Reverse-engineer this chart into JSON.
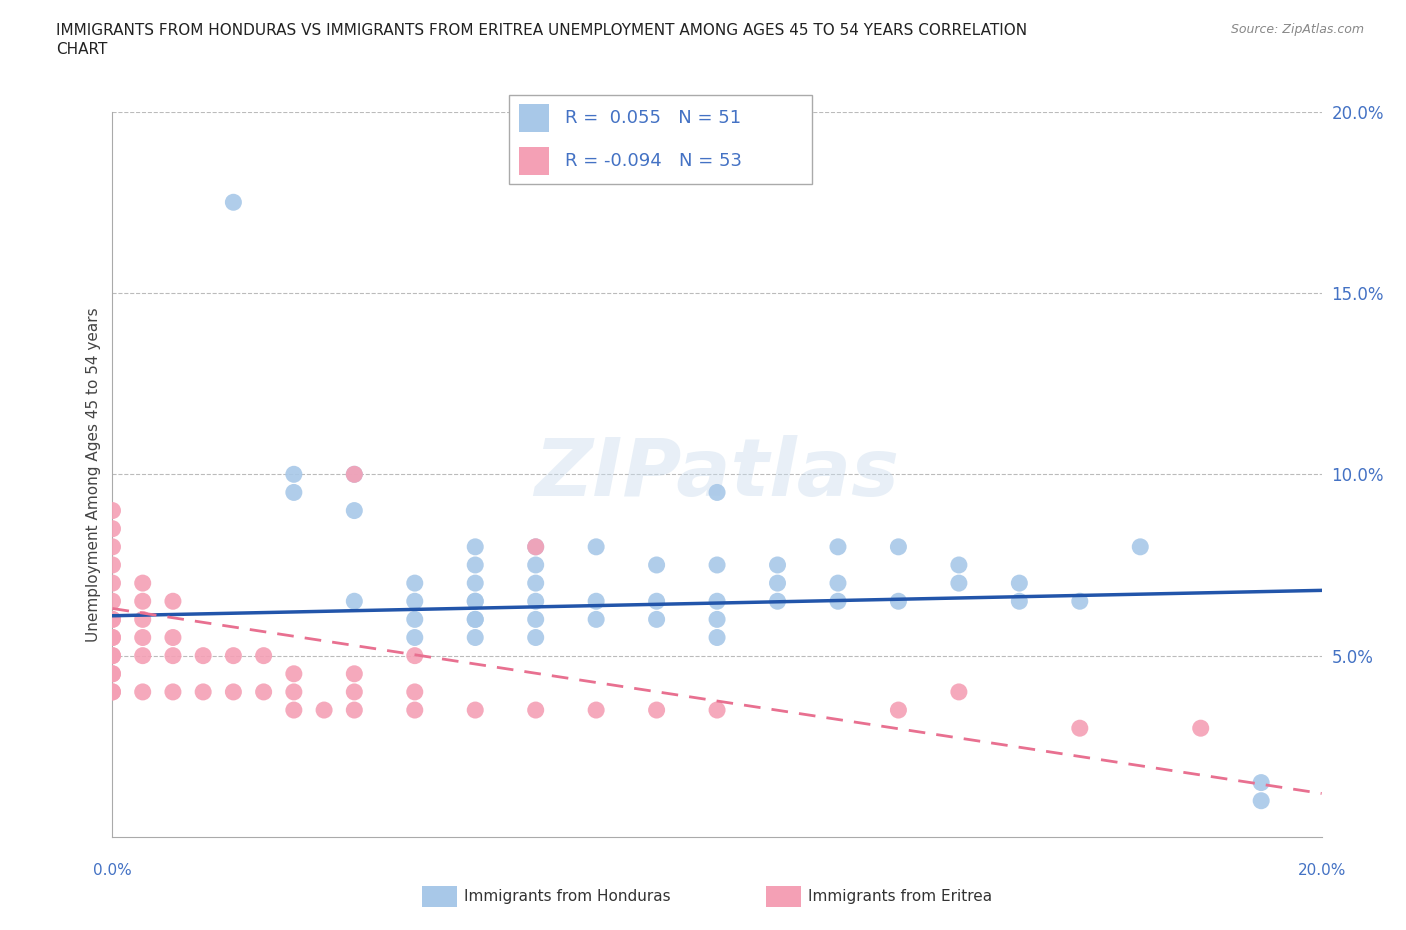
{
  "title_line1": "IMMIGRANTS FROM HONDURAS VS IMMIGRANTS FROM ERITREA UNEMPLOYMENT AMONG AGES 45 TO 54 YEARS CORRELATION",
  "title_line2": "CHART",
  "source": "Source: ZipAtlas.com",
  "xlabel_bottom_left": "0.0%",
  "xlabel_bottom_right": "20.0%",
  "ylabel": "Unemployment Among Ages 45 to 54 years",
  "ytick_labels": [
    "5.0%",
    "10.0%",
    "15.0%",
    "20.0%"
  ],
  "ytick_values": [
    0.05,
    0.1,
    0.15,
    0.2
  ],
  "xlim": [
    0.0,
    0.2
  ],
  "ylim": [
    0.0,
    0.2
  ],
  "watermark": "ZIPatlas",
  "honduras_color": "#a8c8e8",
  "eritrea_color": "#f4a0b5",
  "honduras_line_color": "#2255aa",
  "eritrea_line_color": "#e87090",
  "text_color": "#4472c4",
  "background_color": "#ffffff",
  "grid_color": "#bbbbbb",
  "honduras_scatter_x": [
    0.02,
    0.03,
    0.03,
    0.04,
    0.04,
    0.04,
    0.05,
    0.05,
    0.05,
    0.05,
    0.06,
    0.06,
    0.06,
    0.06,
    0.06,
    0.06,
    0.06,
    0.06,
    0.07,
    0.07,
    0.07,
    0.07,
    0.07,
    0.07,
    0.08,
    0.08,
    0.08,
    0.09,
    0.09,
    0.09,
    0.1,
    0.1,
    0.1,
    0.1,
    0.1,
    0.11,
    0.11,
    0.11,
    0.12,
    0.12,
    0.12,
    0.13,
    0.13,
    0.14,
    0.14,
    0.15,
    0.15,
    0.16,
    0.17,
    0.19,
    0.19
  ],
  "honduras_scatter_y": [
    0.175,
    0.095,
    0.1,
    0.065,
    0.09,
    0.1,
    0.055,
    0.06,
    0.065,
    0.07,
    0.055,
    0.06,
    0.06,
    0.065,
    0.065,
    0.07,
    0.075,
    0.08,
    0.055,
    0.06,
    0.065,
    0.07,
    0.075,
    0.08,
    0.06,
    0.065,
    0.08,
    0.06,
    0.065,
    0.075,
    0.055,
    0.06,
    0.065,
    0.075,
    0.095,
    0.065,
    0.07,
    0.075,
    0.065,
    0.07,
    0.08,
    0.065,
    0.08,
    0.07,
    0.075,
    0.065,
    0.07,
    0.065,
    0.08,
    0.01,
    0.015
  ],
  "eritrea_scatter_x": [
    0.0,
    0.0,
    0.0,
    0.0,
    0.0,
    0.0,
    0.0,
    0.0,
    0.0,
    0.0,
    0.0,
    0.0,
    0.0,
    0.0,
    0.0,
    0.0,
    0.005,
    0.005,
    0.005,
    0.005,
    0.005,
    0.005,
    0.01,
    0.01,
    0.01,
    0.01,
    0.015,
    0.015,
    0.02,
    0.02,
    0.025,
    0.025,
    0.03,
    0.03,
    0.03,
    0.035,
    0.04,
    0.04,
    0.04,
    0.04,
    0.05,
    0.05,
    0.05,
    0.06,
    0.07,
    0.07,
    0.08,
    0.09,
    0.1,
    0.13,
    0.14,
    0.16,
    0.18
  ],
  "eritrea_scatter_y": [
    0.04,
    0.045,
    0.05,
    0.055,
    0.06,
    0.065,
    0.07,
    0.075,
    0.08,
    0.085,
    0.09,
    0.04,
    0.045,
    0.05,
    0.055,
    0.06,
    0.04,
    0.05,
    0.055,
    0.06,
    0.065,
    0.07,
    0.04,
    0.05,
    0.055,
    0.065,
    0.04,
    0.05,
    0.04,
    0.05,
    0.04,
    0.05,
    0.035,
    0.04,
    0.045,
    0.035,
    0.035,
    0.04,
    0.045,
    0.1,
    0.035,
    0.04,
    0.05,
    0.035,
    0.035,
    0.08,
    0.035,
    0.035,
    0.035,
    0.035,
    0.04,
    0.03,
    0.03
  ],
  "h_trend_x": [
    0.0,
    0.2
  ],
  "h_trend_y": [
    0.061,
    0.068
  ],
  "e_trend_x": [
    0.0,
    0.2
  ],
  "e_trend_y": [
    0.063,
    0.012
  ]
}
